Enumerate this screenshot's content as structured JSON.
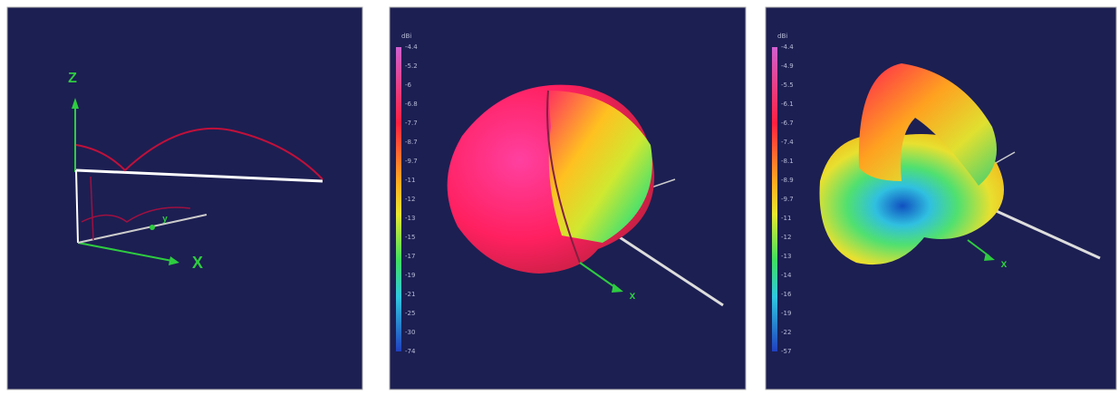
{
  "panels": [
    {
      "axis_labels": {
        "z": "Z",
        "x": "X",
        "y": "y"
      }
    },
    {
      "colorbar": {
        "unit": "dBi",
        "labels": [
          "-4.4",
          "-5.2",
          "-6",
          "-6.8",
          "-7.7",
          "-8.7",
          "-9.7",
          "-11",
          "-12",
          "-13",
          "-15",
          "-17",
          "-19",
          "-21",
          "-25",
          "-30",
          "-74"
        ]
      },
      "axis_labels": {
        "x": "x"
      }
    },
    {
      "colorbar": {
        "unit": "dBi",
        "labels": [
          "-4.4",
          "-4.9",
          "-5.5",
          "-6.1",
          "-6.7",
          "-7.4",
          "-8.1",
          "-8.9",
          "-9.7",
          "-11",
          "-12",
          "-13",
          "-14",
          "-16",
          "-19",
          "-22",
          "-57"
        ]
      },
      "axis_labels": {
        "x": "x"
      }
    }
  ]
}
